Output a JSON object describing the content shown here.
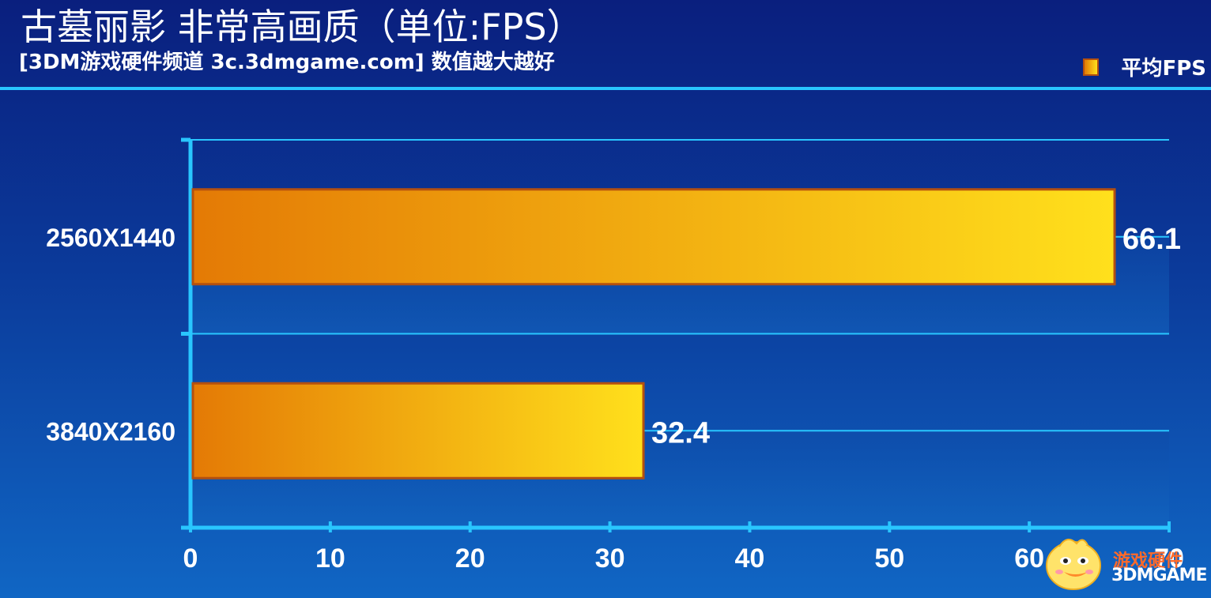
{
  "header": {
    "title": "古墓丽影 非常高画质（单位:FPS）",
    "subtitle": "[3DM游戏硬件频道 3c.3dmgame.com] 数值越大越好"
  },
  "watermark": {
    "line1": "游戏硬件",
    "line2": "3DMGAME"
  },
  "colors": {
    "bar_start": "#e47a05",
    "bar_end": "#ffe01c",
    "bar_border": "#b4500f",
    "axis": "#29c6ff",
    "text": "#ffffff"
  },
  "chart_data": {
    "type": "bar",
    "orientation": "horizontal",
    "title": "古墓丽影 非常高画质（单位:FPS）",
    "subtitle": "[3DM游戏硬件频道 3c.3dmgame.com] 数值越大越好",
    "categories": [
      "2560X1440",
      "3840X2160"
    ],
    "series": [
      {
        "name": "平均FPS",
        "values": [
          66.1,
          32.4
        ]
      }
    ],
    "data_labels": [
      "66.1",
      "32.4"
    ],
    "xlim": [
      0,
      70
    ],
    "xticks": [
      0,
      10,
      20,
      30,
      40,
      50,
      60,
      70
    ],
    "xtick_labels": [
      "0",
      "10",
      "20",
      "30",
      "40",
      "50",
      "60",
      "70"
    ],
    "grid": true,
    "legend": "top-right"
  }
}
